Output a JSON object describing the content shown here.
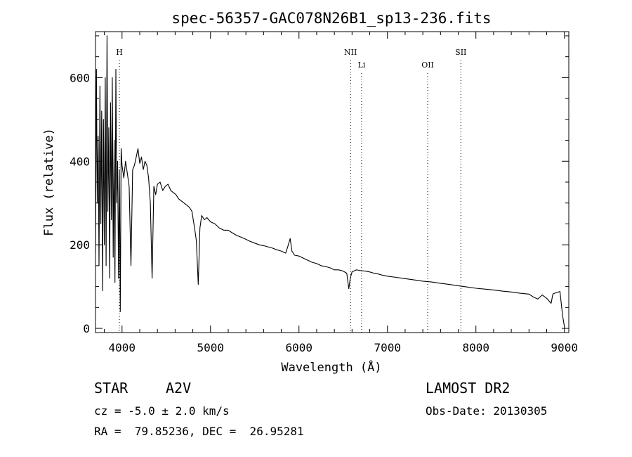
{
  "chart_data": {
    "type": "line",
    "title": "spec-56357-GAC078N26B1_sp13-236.fits",
    "xlabel": "Wavelength (Å)",
    "ylabel": "Flux (relative)",
    "xlim": [
      3700,
      9050
    ],
    "ylim": [
      -10,
      710
    ],
    "xticks": [
      4000,
      5000,
      6000,
      7000,
      8000,
      9000
    ],
    "yticks": [
      0,
      200,
      400,
      600
    ],
    "grid": false,
    "line_color": "#000000",
    "lines": [
      {
        "label": "H",
        "x": 3970,
        "label_level": "high"
      },
      {
        "label": "NII",
        "x": 6583,
        "label_level": "high"
      },
      {
        "label": "Li",
        "x": 6708,
        "label_level": "low"
      },
      {
        "label": "OII",
        "x": 7455,
        "label_level": "low"
      },
      {
        "label": "SII",
        "x": 7830,
        "label_level": "high"
      }
    ],
    "series": [
      {
        "x": [
          3700,
          3710,
          3720,
          3730,
          3740,
          3750,
          3760,
          3770,
          3780,
          3790,
          3800,
          3810,
          3820,
          3830,
          3840,
          3850,
          3860,
          3870,
          3880,
          3890,
          3900,
          3910,
          3920,
          3930,
          3940,
          3950,
          3960,
          3970,
          3980,
          3990,
          4000,
          4020,
          4040,
          4060,
          4080,
          4101,
          4120,
          4140,
          4160,
          4180,
          4200,
          4220,
          4240,
          4260,
          4280,
          4300,
          4320,
          4340,
          4360,
          4380,
          4400,
          4430,
          4460,
          4490,
          4520,
          4550,
          4580,
          4610,
          4640,
          4670,
          4700,
          4730,
          4760,
          4790,
          4820,
          4840,
          4861,
          4880,
          4900,
          4930,
          4960,
          5000,
          5050,
          5100,
          5150,
          5200,
          5250,
          5300,
          5350,
          5400,
          5450,
          5500,
          5550,
          5600,
          5650,
          5700,
          5750,
          5800,
          5850,
          5880,
          5900,
          5920,
          5950,
          6000,
          6050,
          6100,
          6150,
          6200,
          6250,
          6300,
          6350,
          6400,
          6450,
          6500,
          6540,
          6563,
          6580,
          6600,
          6650,
          6700,
          6750,
          6800,
          6850,
          6900,
          6950,
          7000,
          7100,
          7200,
          7300,
          7400,
          7500,
          7600,
          7700,
          7800,
          7900,
          8000,
          8100,
          8200,
          8300,
          8400,
          8500,
          8600,
          8650,
          8700,
          8750,
          8800,
          8850,
          8870,
          8900,
          8950,
          8980,
          9000
        ],
        "y": [
          180,
          620,
          300,
          460,
          150,
          580,
          250,
          520,
          90,
          500,
          200,
          600,
          150,
          700,
          280,
          480,
          120,
          540,
          260,
          600,
          170,
          450,
          110,
          620,
          300,
          400,
          120,
          380,
          40,
          430,
          390,
          360,
          400,
          370,
          340,
          150,
          380,
          390,
          410,
          430,
          395,
          410,
          380,
          400,
          390,
          360,
          300,
          120,
          340,
          320,
          345,
          350,
          330,
          340,
          345,
          330,
          325,
          320,
          310,
          305,
          300,
          295,
          290,
          280,
          240,
          210,
          105,
          240,
          270,
          260,
          265,
          255,
          250,
          240,
          235,
          235,
          228,
          222,
          218,
          213,
          208,
          204,
          200,
          198,
          195,
          192,
          188,
          185,
          180,
          200,
          215,
          185,
          175,
          173,
          168,
          163,
          158,
          155,
          150,
          148,
          145,
          140,
          140,
          137,
          132,
          95,
          120,
          135,
          140,
          138,
          137,
          135,
          132,
          130,
          127,
          125,
          122,
          119,
          116,
          113,
          111,
          108,
          105,
          102,
          99,
          96,
          94,
          92,
          89,
          87,
          84,
          82,
          75,
          70,
          80,
          72,
          60,
          82,
          85,
          88,
          30,
          5
        ]
      }
    ]
  },
  "info": {
    "class": "STAR",
    "subclass": "A2V",
    "cz": "cz = -5.0 ± 2.0 km/s",
    "coords": "RA =  79.85236, DEC =  26.95281",
    "survey": "LAMOST DR2",
    "obsdate": "Obs-Date: 20130305"
  }
}
